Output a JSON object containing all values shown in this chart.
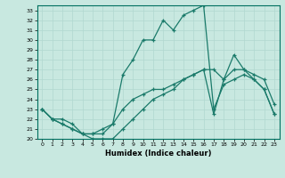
{
  "xlabel": "Humidex (Indice chaleur)",
  "xlim": [
    -0.5,
    23.5
  ],
  "ylim": [
    20,
    33.5
  ],
  "yticks": [
    20,
    21,
    22,
    23,
    24,
    25,
    26,
    27,
    28,
    29,
    30,
    31,
    32,
    33
  ],
  "xticks": [
    0,
    1,
    2,
    3,
    4,
    5,
    6,
    7,
    8,
    9,
    10,
    11,
    12,
    13,
    14,
    15,
    16,
    17,
    18,
    19,
    20,
    21,
    22,
    23
  ],
  "bg_color": "#c8e8e0",
  "line_color": "#1a7a6a",
  "grid_color": "#b0d8d0",
  "line1_x": [
    0,
    1,
    2,
    3,
    4,
    5,
    6,
    7,
    8,
    9,
    10,
    11,
    12,
    13,
    14,
    15,
    16,
    17,
    18,
    19,
    20,
    21,
    22,
    23
  ],
  "line1_y": [
    23,
    22,
    21.5,
    21,
    20.5,
    20.5,
    20.5,
    21.5,
    23,
    24,
    24.5,
    25,
    25,
    25.5,
    26,
    26.5,
    27,
    27,
    26,
    27,
    27,
    26,
    25,
    22.5
  ],
  "line2_x": [
    0,
    1,
    2,
    3,
    4,
    5,
    6,
    7,
    8,
    9,
    10,
    11,
    12,
    13,
    14,
    15,
    16,
    17,
    18,
    19,
    20,
    21,
    22,
    23
  ],
  "line2_y": [
    23,
    22,
    22,
    21.5,
    20.5,
    20,
    20,
    20,
    21,
    22,
    23,
    24,
    24.5,
    25,
    26,
    26.5,
    27,
    22.5,
    26,
    28.5,
    27,
    26.5,
    26,
    23.5
  ],
  "line3_x": [
    0,
    1,
    2,
    3,
    4,
    5,
    6,
    7,
    8,
    9,
    10,
    11,
    12,
    13,
    14,
    15,
    16,
    17,
    18,
    19,
    20,
    21,
    22,
    23
  ],
  "line3_y": [
    23,
    22,
    21.5,
    21,
    20.5,
    20.5,
    21,
    21.5,
    26.5,
    28,
    30,
    30,
    32,
    31,
    32.5,
    33,
    33.5,
    23,
    25.5,
    26,
    26.5,
    26,
    25,
    22.5
  ]
}
